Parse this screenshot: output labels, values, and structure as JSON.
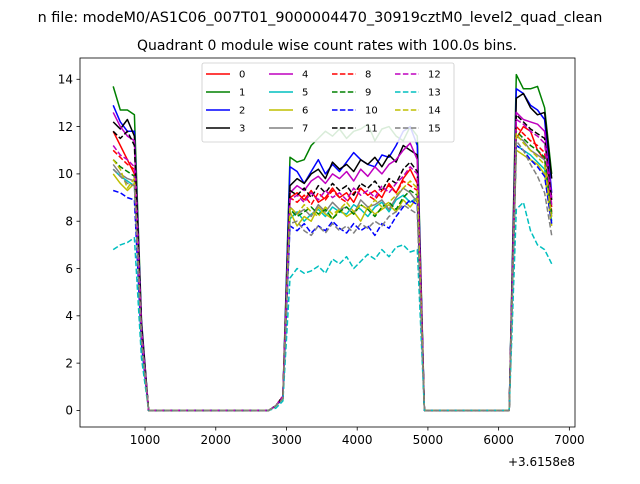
{
  "figure": {
    "suptitle": "n file: modeM0/AS1C06_007T01_9000004470_30919cztM0_level2_quad_clean",
    "title": "Quadrant 0 module wise count rates with 100.0s bins.",
    "offset_label": "+3.6158e8"
  },
  "chart_data": {
    "type": "line",
    "title": "Quadrant 0 module wise count rates with 100.0s bins.",
    "xlabel": "",
    "ylabel": "",
    "x_offset": 361580000,
    "xlim": [
      80,
      7080
    ],
    "ylim": [
      -0.7,
      14.9
    ],
    "xticks": [
      1000,
      2000,
      3000,
      4000,
      5000,
      6000,
      7000
    ],
    "xtick_labels": [
      "1000",
      "2000",
      "3000",
      "4000",
      "5000",
      "6000",
      "7000"
    ],
    "yticks": [
      0,
      2,
      4,
      6,
      8,
      10,
      12,
      14
    ],
    "ytick_labels": [
      "0",
      "2",
      "4",
      "6",
      "8",
      "10",
      "12",
      "14"
    ],
    "grid": false,
    "legend_position": "upper-center",
    "legend_columns": 4,
    "x": [
      550,
      650,
      750,
      850,
      950,
      1050,
      1150,
      1250,
      1350,
      1450,
      1550,
      1650,
      1750,
      1850,
      1950,
      2050,
      2150,
      2250,
      2350,
      2450,
      2550,
      2650,
      2750,
      2850,
      2950,
      3050,
      3150,
      3250,
      3350,
      3450,
      3550,
      3650,
      3750,
      3850,
      3950,
      4050,
      4150,
      4250,
      4350,
      4450,
      4550,
      4650,
      4750,
      4850,
      4950,
      5050,
      5150,
      5250,
      5350,
      5450,
      5550,
      5650,
      5750,
      5850,
      5950,
      6050,
      6150,
      6250,
      6350,
      6450,
      6550,
      6650,
      6750
    ],
    "series": [
      {
        "name": "0",
        "color": "#ff0000",
        "dash": "solid",
        "values": [
          11.8,
          11.2,
          10.6,
          10.0,
          3.2,
          0,
          0,
          0,
          0,
          0,
          0,
          0,
          0,
          0,
          0,
          0,
          0,
          0,
          0,
          0,
          0,
          0,
          0,
          0.2,
          0.6,
          9.0,
          9.2,
          8.9,
          9.3,
          8.8,
          9.0,
          9.4,
          9.0,
          9.2,
          8.8,
          9.4,
          9.1,
          9.3,
          9.0,
          9.6,
          9.2,
          9.8,
          10.2,
          9.6,
          0,
          0,
          0,
          0,
          0,
          0,
          0,
          0,
          0,
          0,
          0,
          0,
          0,
          11.5,
          12.0,
          11.8,
          11.0,
          10.6,
          8.6
        ]
      },
      {
        "name": "1",
        "color": "#008000",
        "dash": "solid",
        "values": [
          13.7,
          12.7,
          12.7,
          12.5,
          3.8,
          0,
          0,
          0,
          0,
          0,
          0,
          0,
          0,
          0,
          0,
          0,
          0,
          0,
          0,
          0,
          0,
          0,
          0,
          0.2,
          0.6,
          10.7,
          10.5,
          10.6,
          11.2,
          11.5,
          11.8,
          11.6,
          11.9,
          11.5,
          11.8,
          11.9,
          12.1,
          11.4,
          11.9,
          12.0,
          11.6,
          11.4,
          12.0,
          11.6,
          0,
          0,
          0,
          0,
          0,
          0,
          0,
          0,
          0,
          0,
          0,
          0,
          0,
          14.2,
          13.6,
          13.6,
          13.7,
          12.8,
          10.0
        ]
      },
      {
        "name": "2",
        "color": "#0000ff",
        "dash": "solid",
        "values": [
          12.9,
          12.2,
          11.8,
          11.8,
          3.7,
          0,
          0,
          0,
          0,
          0,
          0,
          0,
          0,
          0,
          0,
          0,
          0,
          0,
          0,
          0,
          0,
          0,
          0,
          0.2,
          0.6,
          10.3,
          10.1,
          9.6,
          10.1,
          10.6,
          10.0,
          10.4,
          10.1,
          10.5,
          10.9,
          10.6,
          10.4,
          10.3,
          10.8,
          10.7,
          11.2,
          11.8,
          12.0,
          11.2,
          0,
          0,
          0,
          0,
          0,
          0,
          0,
          0,
          0,
          0,
          0,
          0,
          0,
          13.6,
          13.4,
          12.9,
          12.7,
          12.3,
          9.2
        ]
      },
      {
        "name": "3",
        "color": "#000000",
        "dash": "solid",
        "values": [
          12.2,
          11.9,
          12.3,
          11.6,
          3.6,
          0,
          0,
          0,
          0,
          0,
          0,
          0,
          0,
          0,
          0,
          0,
          0,
          0,
          0,
          0,
          0,
          0,
          0,
          0.2,
          0.6,
          9.5,
          9.8,
          9.6,
          10.0,
          10.2,
          9.8,
          10.5,
          10.2,
          10.4,
          10.1,
          10.6,
          10.4,
          10.7,
          10.3,
          10.8,
          10.5,
          11.2,
          11.0,
          10.8,
          0,
          0,
          0,
          0,
          0,
          0,
          0,
          0,
          0,
          0,
          0,
          0,
          0,
          13.2,
          13.4,
          12.8,
          12.5,
          12.6,
          9.8
        ]
      },
      {
        "name": "4",
        "color": "#bf00bf",
        "dash": "solid",
        "values": [
          12.6,
          12.0,
          11.6,
          11.4,
          3.5,
          0,
          0,
          0,
          0,
          0,
          0,
          0,
          0,
          0,
          0,
          0,
          0,
          0,
          0,
          0,
          0,
          0,
          0,
          0.2,
          0.6,
          9.2,
          9.5,
          9.3,
          9.7,
          9.9,
          9.6,
          10.0,
          9.8,
          10.1,
          9.7,
          10.2,
          9.9,
          10.3,
          10.0,
          10.4,
          10.6,
          11.0,
          11.3,
          10.6,
          0,
          0,
          0,
          0,
          0,
          0,
          0,
          0,
          0,
          0,
          0,
          0,
          0,
          12.6,
          12.3,
          12.2,
          12.1,
          11.8,
          9.0
        ]
      },
      {
        "name": "5",
        "color": "#00bfbf",
        "dash": "solid",
        "values": [
          10.2,
          9.9,
          9.7,
          9.5,
          3.0,
          0,
          0,
          0,
          0,
          0,
          0,
          0,
          0,
          0,
          0,
          0,
          0,
          0,
          0,
          0,
          0,
          0,
          0,
          0.2,
          0.5,
          8.1,
          8.4,
          8.0,
          8.3,
          8.5,
          8.2,
          8.6,
          8.4,
          8.3,
          8.7,
          8.5,
          8.2,
          8.6,
          8.8,
          8.4,
          8.9,
          9.1,
          8.8,
          9.0,
          0,
          0,
          0,
          0,
          0,
          0,
          0,
          0,
          0,
          0,
          0,
          0,
          0,
          11.2,
          11.0,
          10.8,
          10.5,
          10.2,
          8.0
        ]
      },
      {
        "name": "6",
        "color": "#bfbf00",
        "dash": "solid",
        "values": [
          10.0,
          9.6,
          9.3,
          9.6,
          2.9,
          0,
          0,
          0,
          0,
          0,
          0,
          0,
          0,
          0,
          0,
          0,
          0,
          0,
          0,
          0,
          0,
          0,
          0,
          0.2,
          0.5,
          8.4,
          7.8,
          8.2,
          8.0,
          8.6,
          8.3,
          8.1,
          8.5,
          8.2,
          8.4,
          8.0,
          8.6,
          8.3,
          8.5,
          8.7,
          8.4,
          8.9,
          8.6,
          9.0,
          0,
          0,
          0,
          0,
          0,
          0,
          0,
          0,
          0,
          0,
          0,
          0,
          0,
          11.0,
          10.8,
          10.6,
          10.4,
          10.0,
          7.8
        ]
      },
      {
        "name": "7",
        "color": "#808080",
        "dash": "solid",
        "values": [
          10.4,
          10.0,
          9.8,
          9.7,
          3.1,
          0,
          0,
          0,
          0,
          0,
          0,
          0,
          0,
          0,
          0,
          0,
          0,
          0,
          0,
          0,
          0,
          0,
          0,
          0.2,
          0.5,
          8.6,
          8.3,
          8.5,
          8.2,
          8.7,
          8.4,
          8.8,
          8.5,
          8.6,
          8.3,
          8.9,
          8.6,
          8.7,
          8.9,
          8.5,
          9.0,
          9.4,
          9.2,
          8.8,
          0,
          0,
          0,
          0,
          0,
          0,
          0,
          0,
          0,
          0,
          0,
          0,
          0,
          11.6,
          11.4,
          11.0,
          10.8,
          10.6,
          8.2
        ]
      },
      {
        "name": "8",
        "color": "#ff0000",
        "dash": "dashed",
        "values": [
          11.0,
          10.7,
          10.4,
          10.2,
          3.2,
          0,
          0,
          0,
          0,
          0,
          0,
          0,
          0,
          0,
          0,
          0,
          0,
          0,
          0,
          0,
          0,
          0,
          0,
          0.2,
          0.6,
          9.0,
          8.8,
          9.1,
          8.7,
          9.2,
          8.9,
          9.3,
          9.0,
          8.8,
          9.2,
          9.4,
          9.1,
          8.9,
          9.3,
          9.5,
          9.2,
          9.7,
          9.5,
          9.3,
          0,
          0,
          0,
          0,
          0,
          0,
          0,
          0,
          0,
          0,
          0,
          0,
          0,
          12.0,
          11.7,
          11.4,
          11.2,
          10.9,
          8.4
        ]
      },
      {
        "name": "9",
        "color": "#008000",
        "dash": "dashed",
        "values": [
          10.6,
          10.3,
          10.1,
          9.9,
          3.1,
          0,
          0,
          0,
          0,
          0,
          0,
          0,
          0,
          0,
          0,
          0,
          0,
          0,
          0,
          0,
          0,
          0,
          0,
          0.2,
          0.5,
          8.5,
          8.2,
          8.4,
          8.6,
          8.3,
          8.5,
          8.1,
          8.4,
          8.6,
          8.3,
          8.7,
          8.5,
          8.2,
          8.6,
          8.8,
          8.5,
          9.0,
          9.3,
          9.1,
          0,
          0,
          0,
          0,
          0,
          0,
          0,
          0,
          0,
          0,
          0,
          0,
          0,
          11.8,
          11.5,
          11.2,
          11.0,
          10.7,
          8.3
        ]
      },
      {
        "name": "10",
        "color": "#0000ff",
        "dash": "dashed",
        "values": [
          9.3,
          9.2,
          9.0,
          8.9,
          2.8,
          0,
          0,
          0,
          0,
          0,
          0,
          0,
          0,
          0,
          0,
          0,
          0,
          0,
          0,
          0,
          0,
          0,
          0,
          0.2,
          0.5,
          7.8,
          7.6,
          7.9,
          7.5,
          7.8,
          7.6,
          8.0,
          7.7,
          7.5,
          7.9,
          7.6,
          7.8,
          7.4,
          7.9,
          7.7,
          8.2,
          8.6,
          8.9,
          8.7,
          0,
          0,
          0,
          0,
          0,
          0,
          0,
          0,
          0,
          0,
          0,
          0,
          0,
          11.2,
          11.0,
          10.6,
          10.3,
          9.9,
          7.9
        ]
      },
      {
        "name": "11",
        "color": "#000000",
        "dash": "dashed",
        "values": [
          11.8,
          11.5,
          11.8,
          11.2,
          3.5,
          0,
          0,
          0,
          0,
          0,
          0,
          0,
          0,
          0,
          0,
          0,
          0,
          0,
          0,
          0,
          0,
          0,
          0,
          0.2,
          0.6,
          9.3,
          9.1,
          9.4,
          9.0,
          9.5,
          9.2,
          9.6,
          9.3,
          9.5,
          9.1,
          9.6,
          9.4,
          9.7,
          9.3,
          9.8,
          9.6,
          10.2,
          10.5,
          10.1,
          0,
          0,
          0,
          0,
          0,
          0,
          0,
          0,
          0,
          0,
          0,
          0,
          0,
          12.5,
          12.2,
          11.9,
          11.7,
          11.5,
          8.9
        ]
      },
      {
        "name": "12",
        "color": "#bf00bf",
        "dash": "dashed",
        "values": [
          11.2,
          10.8,
          10.6,
          10.3,
          3.3,
          0,
          0,
          0,
          0,
          0,
          0,
          0,
          0,
          0,
          0,
          0,
          0,
          0,
          0,
          0,
          0,
          0,
          0,
          0.2,
          0.6,
          8.9,
          9.1,
          8.8,
          9.2,
          8.9,
          9.3,
          9.0,
          9.2,
          8.9,
          9.4,
          9.1,
          9.3,
          9.0,
          9.5,
          9.2,
          9.6,
          9.9,
          10.3,
          10.0,
          0,
          0,
          0,
          0,
          0,
          0,
          0,
          0,
          0,
          0,
          0,
          0,
          0,
          12.3,
          12.1,
          11.8,
          11.6,
          11.3,
          8.7
        ]
      },
      {
        "name": "13",
        "color": "#00bfbf",
        "dash": "dashed",
        "values": [
          6.8,
          7.0,
          7.1,
          7.3,
          2.2,
          0,
          0,
          0,
          0,
          0,
          0,
          0,
          0,
          0,
          0,
          0,
          0,
          0,
          0,
          0,
          0,
          0,
          0,
          0.1,
          0.4,
          5.6,
          6.0,
          5.8,
          5.9,
          6.1,
          5.8,
          6.4,
          6.2,
          6.5,
          6.0,
          6.3,
          6.6,
          6.4,
          6.8,
          6.5,
          6.9,
          7.0,
          6.7,
          6.8,
          0,
          0,
          0,
          0,
          0,
          0,
          0,
          0,
          0,
          0,
          0,
          0,
          0,
          8.5,
          8.8,
          7.6,
          7.0,
          6.8,
          6.2
        ]
      },
      {
        "name": "14",
        "color": "#bfbf00",
        "dash": "dashed",
        "values": [
          10.6,
          10.2,
          9.4,
          9.8,
          3.0,
          0,
          0,
          0,
          0,
          0,
          0,
          0,
          0,
          0,
          0,
          0,
          0,
          0,
          0,
          0,
          0,
          0,
          0,
          0.2,
          0.5,
          8.6,
          8.3,
          8.7,
          8.4,
          8.2,
          8.6,
          8.3,
          8.5,
          8.8,
          8.4,
          8.7,
          8.5,
          8.9,
          8.6,
          8.8,
          9.1,
          9.4,
          9.7,
          9.4,
          0,
          0,
          0,
          0,
          0,
          0,
          0,
          0,
          0,
          0,
          0,
          0,
          0,
          11.7,
          11.3,
          11.0,
          10.7,
          10.4,
          8.1
        ]
      },
      {
        "name": "15",
        "color": "#808080",
        "dash": "dashed",
        "values": [
          10.2,
          9.9,
          9.6,
          9.5,
          3.0,
          0,
          0,
          0,
          0,
          0,
          0,
          0,
          0,
          0,
          0,
          0,
          0,
          0,
          0,
          0,
          0,
          0,
          0,
          0.2,
          0.5,
          7.9,
          8.0,
          7.6,
          7.4,
          7.8,
          7.5,
          7.9,
          7.6,
          7.8,
          7.5,
          7.9,
          7.7,
          8.0,
          7.8,
          8.2,
          8.4,
          8.7,
          8.5,
          8.3,
          0,
          0,
          0,
          0,
          0,
          0,
          0,
          0,
          0,
          0,
          0,
          0,
          0,
          11.4,
          11.0,
          10.4,
          9.9,
          9.2,
          7.4
        ]
      }
    ]
  }
}
